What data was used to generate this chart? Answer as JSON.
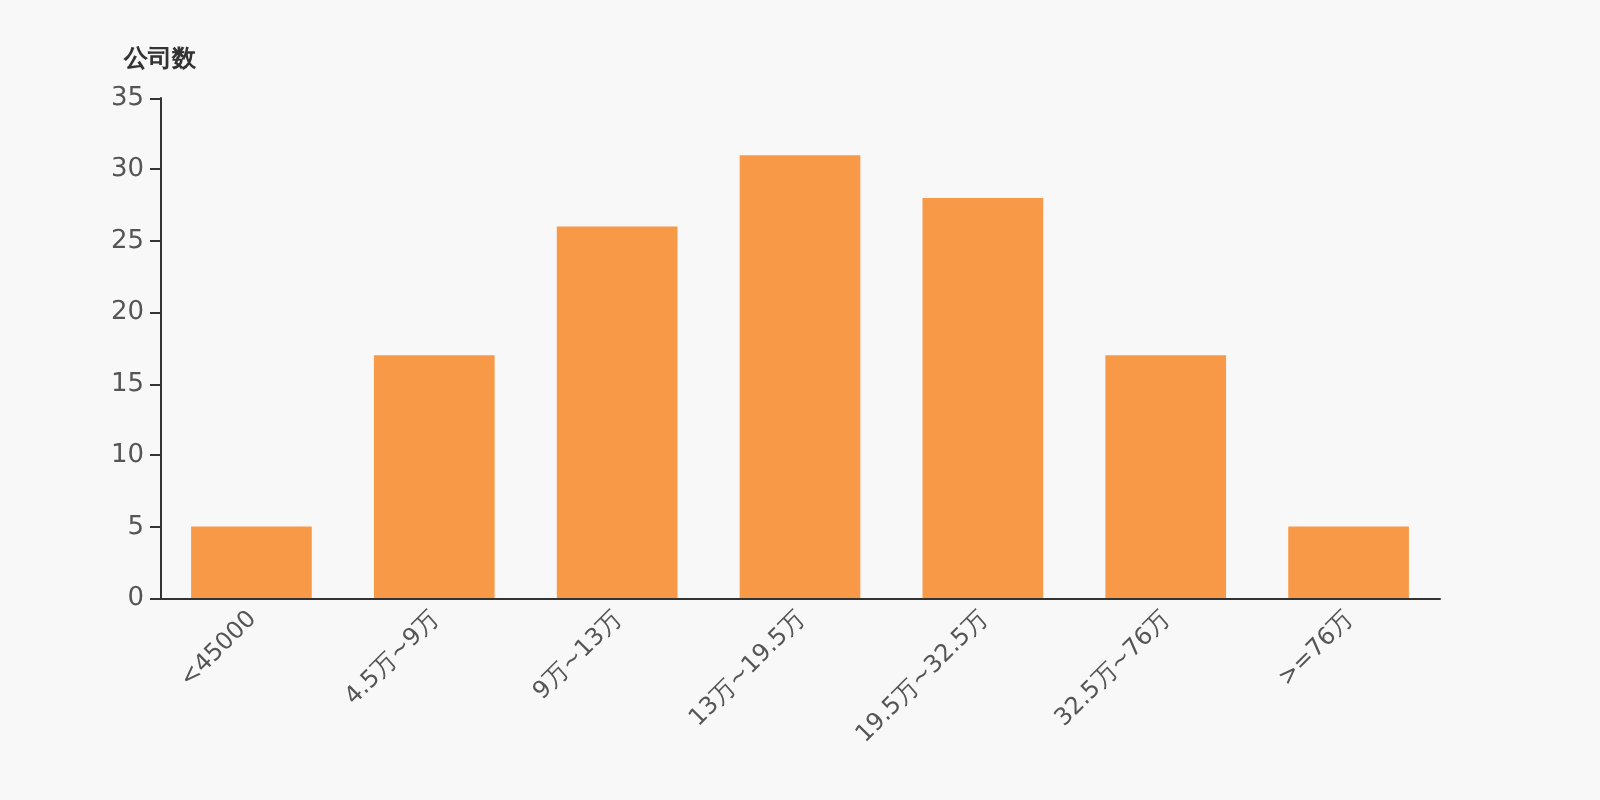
{
  "chart_data": {
    "type": "bar",
    "ylabel": "公司数",
    "categories": [
      "<45000",
      "4.5万~9万",
      "9万~13万",
      "13万~19.5万",
      "19.5万~32.5万",
      "32.5万~76万",
      ">=76万"
    ],
    "values": [
      5,
      17,
      26,
      31,
      28,
      17,
      5
    ],
    "color": "#f89948",
    "ylim": [
      0,
      35
    ],
    "yticks": [
      0,
      5,
      10,
      15,
      20,
      25,
      30,
      35
    ],
    "grid": false
  }
}
